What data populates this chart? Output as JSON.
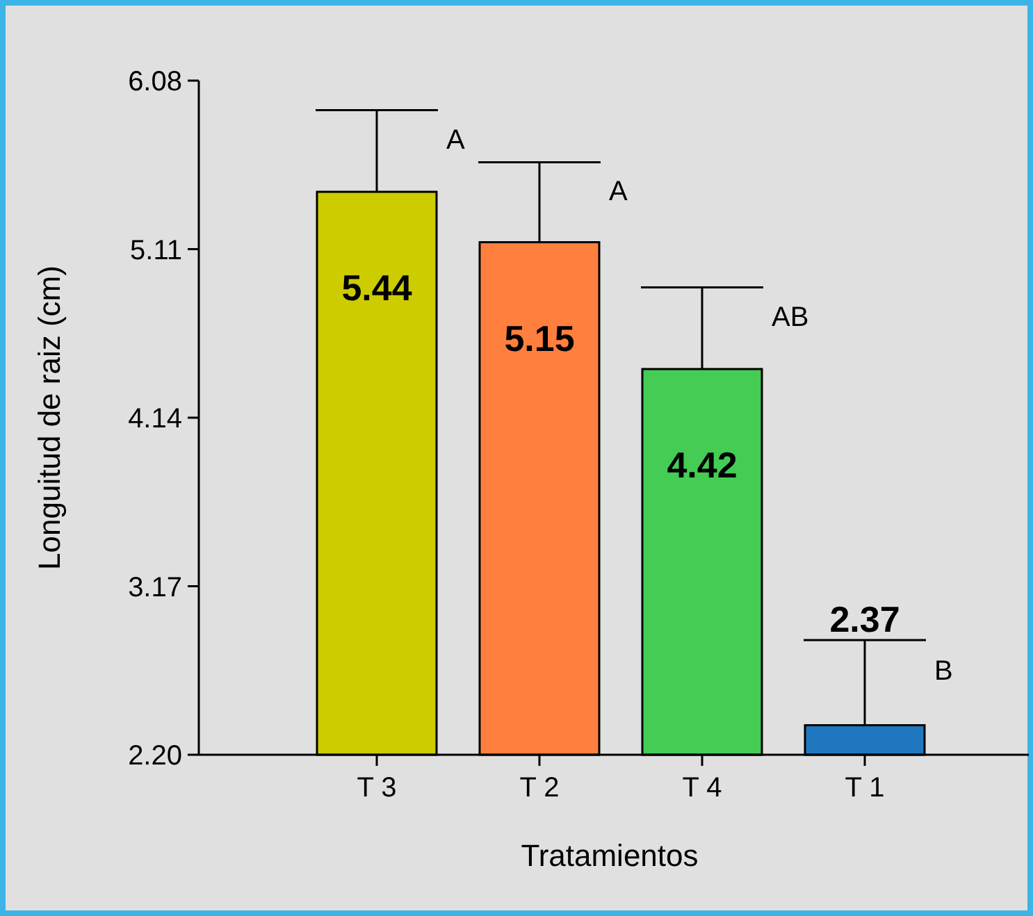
{
  "chart_data": {
    "type": "bar",
    "xlabel": "Tratamientos",
    "ylabel": "Longuitud de raiz (cm)",
    "categories": [
      "T 3",
      "T 2",
      "T 4",
      "T 1"
    ],
    "values": [
      5.44,
      5.15,
      4.42,
      2.37
    ],
    "colors": [
      "#cccc00",
      "#ff7f3f",
      "#44cc55",
      "#1f77bf"
    ],
    "errors": [
      [
        5.44,
        5.91
      ],
      [
        5.15,
        5.61
      ],
      [
        4.42,
        4.89
      ],
      [
        2.37,
        2.86
      ]
    ],
    "data_labels": true,
    "ylim": [
      2.2,
      6.08
    ],
    "yticks": [
      {
        "value": 2.2,
        "label": "2.20"
      },
      {
        "value": 3.17,
        "label": "3.17"
      },
      {
        "value": 4.14,
        "label": "4.14"
      },
      {
        "value": 5.11,
        "label": "5.11"
      },
      {
        "value": 6.08,
        "label": "6.08"
      }
    ],
    "grid": false,
    "annotations": [
      "A",
      "A",
      "AB",
      "B"
    ]
  }
}
